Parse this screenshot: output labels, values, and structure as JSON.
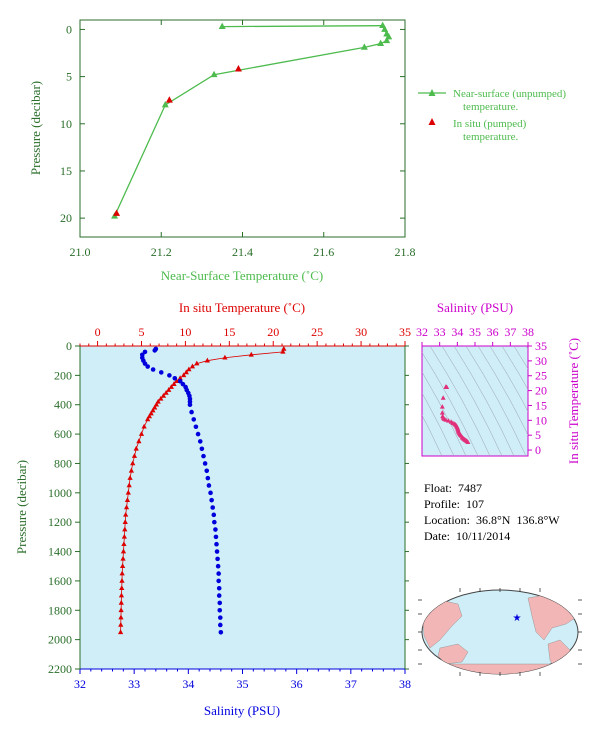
{
  "colors": {
    "axis_green": "#2a6e2a",
    "near_surface_green": "#4dbb4d",
    "insitu_red": "#dd0000",
    "salinity_blue": "#0000dd",
    "salinity_magenta": "#cc00cc",
    "panel_bg": "#cfeef7",
    "ts_points": "#e0307a"
  },
  "float_info": {
    "float": "Float:  7487",
    "profile": "Profile:  107",
    "location": "Location:  36.8°N  136.8°W",
    "date": "Date:  10/11/2014"
  },
  "chart_data": [
    {
      "type": "line",
      "id": "near-surface",
      "xlabel": "Near-Surface Temperature (˚C)",
      "ylabel": "Pressure (decibar)",
      "xlim": [
        21.0,
        21.8
      ],
      "ylim": [
        22,
        -1
      ],
      "xticks": [
        "21.0",
        "21.2",
        "21.4",
        "21.6",
        "21.8"
      ],
      "yticks": [
        "0",
        "5",
        "10",
        "15",
        "20"
      ],
      "legend": [
        "Near-surface (unpumped)",
        "temperature.",
        "In situ (pumped)",
        "temperature."
      ],
      "series": [
        {
          "name": "Near-surface (unpumped) temperature.",
          "x": [
            21.35,
            21.745,
            21.75,
            21.755,
            21.76,
            21.755,
            21.74,
            21.7,
            21.33,
            21.21,
            21.085
          ],
          "y": [
            -0.3,
            -0.4,
            0.0,
            0.5,
            0.8,
            1.2,
            1.5,
            1.9,
            4.8,
            8.0,
            19.8
          ]
        },
        {
          "name": "In situ (pumped) temperature.",
          "x": [
            21.39,
            21.22,
            21.09
          ],
          "y": [
            4.2,
            7.5,
            19.5
          ]
        }
      ]
    },
    {
      "type": "line",
      "id": "profile",
      "xlabel_top": "In situ Temperature (˚C)",
      "xlabel_bottom": "Salinity (PSU)",
      "ylabel": "Pressure (decibar)",
      "temp_xlim": [
        -2,
        35
      ],
      "sal_xlim": [
        32,
        38
      ],
      "ylim": [
        2200,
        0
      ],
      "temp_ticks": [
        "0",
        "5",
        "10",
        "15",
        "20",
        "25",
        "30",
        "35"
      ],
      "sal_ticks": [
        "32",
        "33",
        "34",
        "35",
        "36",
        "37",
        "38"
      ],
      "yticks": [
        "0",
        "200",
        "400",
        "600",
        "800",
        "1000",
        "1200",
        "1400",
        "1600",
        "1800",
        "2000",
        "2200"
      ],
      "temperature": {
        "p": [
          20,
          40,
          60,
          80,
          100,
          120,
          140,
          160,
          180,
          200,
          220,
          240,
          260,
          280,
          300,
          320,
          340,
          360,
          380,
          400,
          420,
          440,
          460,
          480,
          500,
          550,
          600,
          650,
          700,
          750,
          800,
          850,
          900,
          950,
          1000,
          1050,
          1100,
          1150,
          1200,
          1250,
          1300,
          1350,
          1400,
          1450,
          1500,
          1550,
          1600,
          1650,
          1700,
          1750,
          1800,
          1850,
          1900,
          1950
        ],
        "t": [
          21.2,
          21.1,
          17.5,
          14.5,
          12.5,
          11.3,
          10.8,
          10.4,
          10.1,
          9.8,
          9.4,
          9.0,
          8.7,
          8.4,
          8.1,
          7.8,
          7.5,
          7.2,
          6.9,
          6.7,
          6.5,
          6.3,
          6.1,
          5.9,
          5.7,
          5.3,
          5.0,
          4.7,
          4.4,
          4.2,
          4.0,
          3.85,
          3.7,
          3.6,
          3.5,
          3.4,
          3.3,
          3.2,
          3.15,
          3.1,
          3.05,
          3.0,
          2.95,
          2.9,
          2.85,
          2.8,
          2.78,
          2.75,
          2.72,
          2.7,
          2.68,
          2.66,
          2.64,
          2.62
        ]
      },
      "salinity": {
        "p": [
          20,
          30,
          40,
          60,
          80,
          100,
          120,
          140,
          160,
          180,
          200,
          220,
          240,
          260,
          280,
          300,
          320,
          340,
          360,
          380,
          400,
          450,
          500,
          550,
          600,
          650,
          700,
          750,
          800,
          850,
          900,
          950,
          1000,
          1050,
          1100,
          1150,
          1200,
          1250,
          1300,
          1350,
          1400,
          1450,
          1500,
          1550,
          1600,
          1650,
          1700,
          1750,
          1800,
          1850,
          1900,
          1950
        ],
        "s": [
          33.4,
          33.38,
          33.2,
          33.15,
          33.15,
          33.17,
          33.2,
          33.25,
          33.35,
          33.5,
          33.65,
          33.75,
          33.85,
          33.9,
          33.95,
          33.97,
          34.0,
          34.02,
          34.03,
          34.03,
          34.03,
          34.06,
          34.1,
          34.14,
          34.18,
          34.22,
          34.25,
          34.28,
          34.31,
          34.34,
          34.36,
          34.38,
          34.41,
          34.43,
          34.45,
          34.47,
          34.48,
          34.5,
          34.51,
          34.52,
          34.53,
          34.54,
          34.55,
          34.56,
          34.56,
          34.57,
          34.57,
          34.58,
          34.58,
          34.59,
          34.59,
          34.6
        ]
      }
    },
    {
      "type": "scatter",
      "id": "ts-diagram",
      "xlabel_top": "Salinity (PSU)",
      "ylabel_right": "In situ Temperature (˚C)",
      "xlim": [
        32,
        38
      ],
      "ylim": [
        -2,
        35
      ],
      "xticks": [
        "32",
        "33",
        "34",
        "35",
        "36",
        "37",
        "38"
      ],
      "yticks": [
        "0",
        "5",
        "10",
        "15",
        "20",
        "25",
        "30",
        "35"
      ],
      "points": {
        "s": [
          33.35,
          33.4,
          33.2,
          33.15,
          33.15,
          33.17,
          33.2,
          33.25,
          33.35,
          33.5,
          33.65,
          33.75,
          33.85,
          33.9,
          33.95,
          33.97,
          34.0,
          34.02,
          34.03,
          34.05,
          34.06,
          34.1,
          34.14,
          34.18,
          34.22,
          34.28,
          34.31,
          34.36,
          34.41,
          34.45,
          34.5,
          34.55,
          34.6
        ],
        "t": [
          21.2,
          21.1,
          17.5,
          14.5,
          12.5,
          11.3,
          10.8,
          10.4,
          10.1,
          9.8,
          9.4,
          9.0,
          8.7,
          8.4,
          8.1,
          7.8,
          7.5,
          7.2,
          6.9,
          6.5,
          6.1,
          5.7,
          5.3,
          5.0,
          4.7,
          4.2,
          4.0,
          3.7,
          3.5,
          3.3,
          3.1,
          2.9,
          2.6
        ]
      }
    }
  ]
}
